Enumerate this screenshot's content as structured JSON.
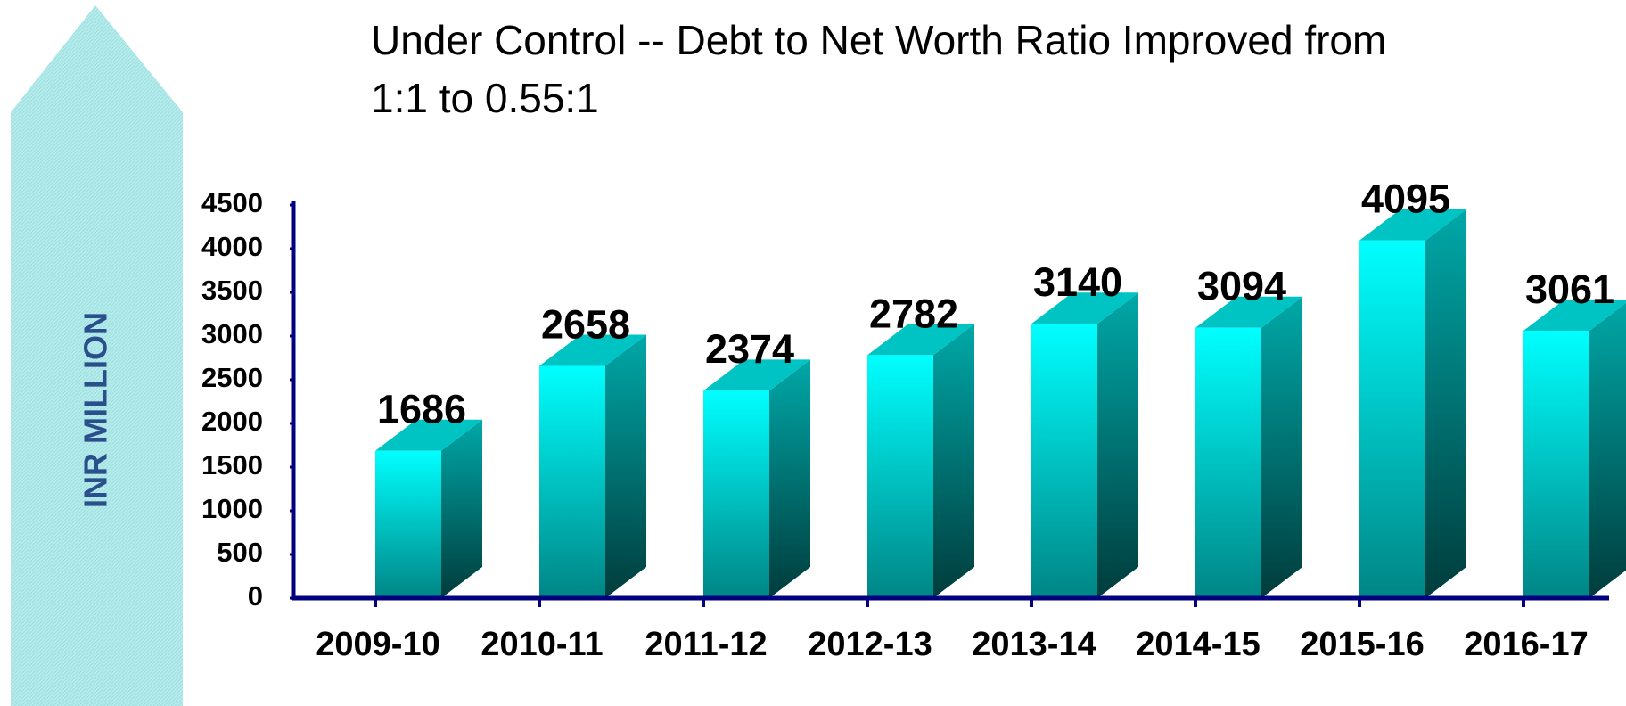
{
  "chart_data": {
    "type": "bar3d",
    "title": "Under Control  --   Debt to Net Worth Ratio Improved  from",
    "subtitle": "1:1 to 0.55:1",
    "y_label": "INR MILLION",
    "categories": [
      "2009-10",
      "2010-11",
      "2011-12",
      "2012-13",
      "2013-14",
      "2014-15",
      "2015-16",
      "2016-17"
    ],
    "values": [
      1686,
      2658,
      2374,
      2782,
      3140,
      3094,
      4095,
      3061
    ],
    "color": "#00ffff",
    "ylim": [
      0,
      4500
    ],
    "yticks": [
      0,
      500,
      1000,
      1500,
      2000,
      2500,
      3000,
      3500,
      4000,
      4500
    ],
    "grid": false
  }
}
